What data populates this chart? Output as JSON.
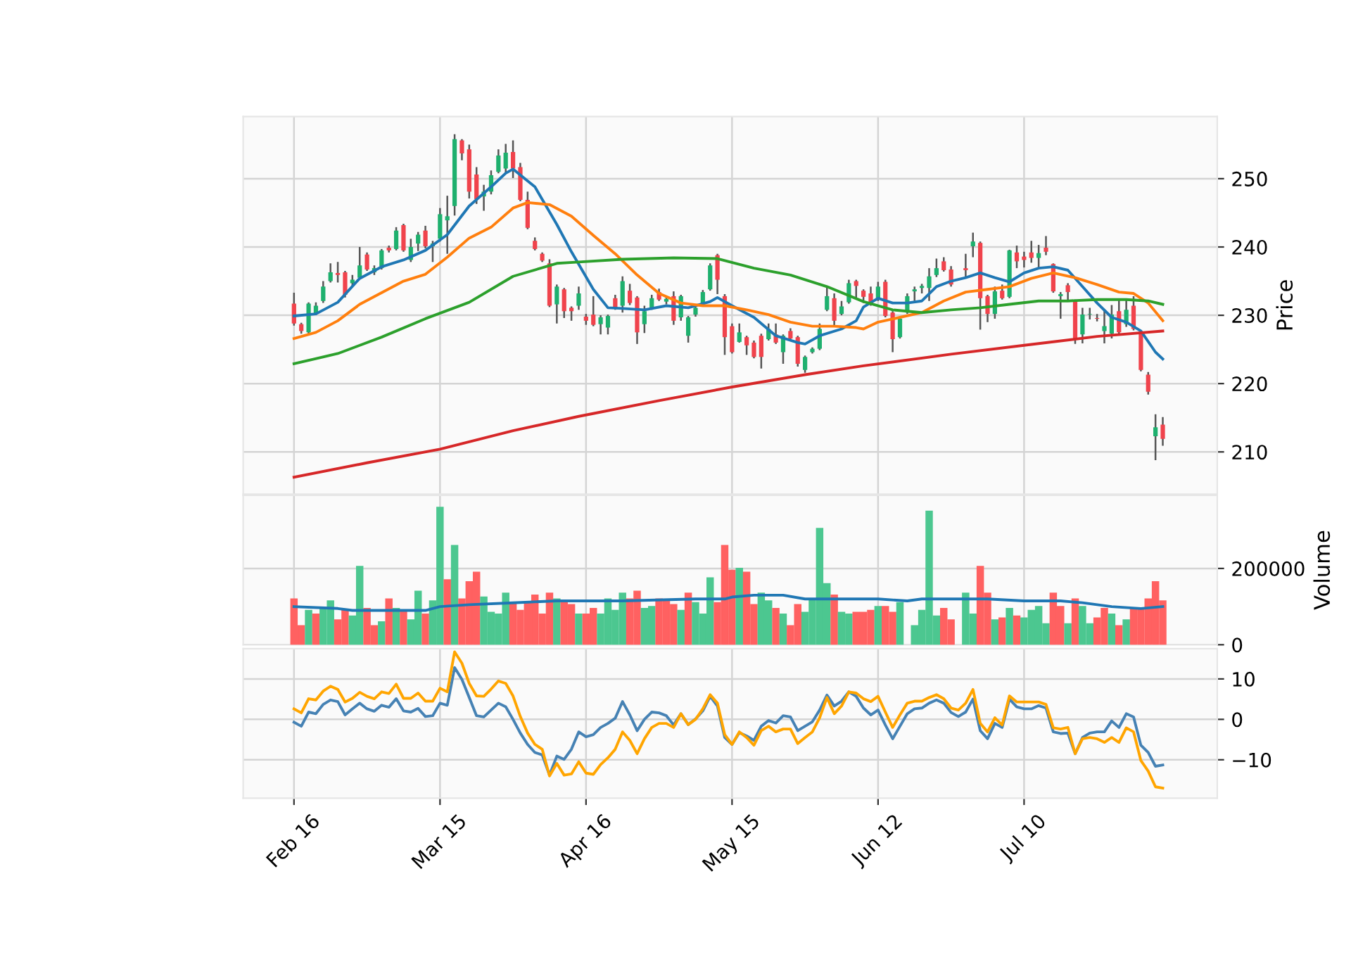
{
  "chart_data": [
    {
      "type": "candlestick",
      "ylabel": "Price",
      "tick_labels": "y",
      "grid": true,
      "categories": [
        null,
        null,
        null,
        null,
        null,
        null,
        null,
        null,
        null,
        null,
        null,
        null,
        null,
        null,
        null,
        null,
        null,
        null,
        null,
        null,
        null,
        null,
        null,
        null,
        null,
        null,
        null,
        null,
        null,
        null,
        null,
        null,
        null,
        null,
        null,
        null,
        null,
        null,
        null,
        null,
        null,
        null,
        null,
        null,
        null,
        null,
        null,
        null,
        null,
        null,
        null,
        null,
        null,
        null,
        null,
        null,
        null,
        null,
        null,
        null,
        null,
        null,
        null,
        null,
        null,
        null,
        null,
        null,
        null,
        null,
        null,
        null,
        null,
        null,
        null,
        null,
        null,
        null,
        null,
        null,
        null,
        null,
        null,
        null,
        null,
        null,
        null,
        null,
        null,
        null,
        null,
        null,
        null,
        null,
        null,
        null,
        null,
        null,
        null,
        null,
        null,
        null,
        null,
        null,
        null,
        null,
        null,
        null,
        null,
        null,
        null,
        null,
        null,
        null,
        null,
        null,
        null,
        null,
        null,
        null
      ],
      "ohlc": [
        [
          231.7,
          233.3,
          228.5,
          228.8
        ],
        [
          228.7,
          228.9,
          227.3,
          227.7
        ],
        [
          227.5,
          231.9,
          227.3,
          231.7
        ],
        [
          230.3,
          231.9,
          230.0,
          231.4
        ],
        [
          232.1,
          235.0,
          231.8,
          234.2
        ],
        [
          235.0,
          237.6,
          234.8,
          236.3
        ],
        [
          236.2,
          237.8,
          234.8,
          235.9
        ],
        [
          236.3,
          236.5,
          232.6,
          233.0
        ],
        [
          234.7,
          235.9,
          234.3,
          235.2
        ],
        [
          235.5,
          240.0,
          235.3,
          237.3
        ],
        [
          238.9,
          239.2,
          236.5,
          236.7
        ],
        [
          236.3,
          237.3,
          235.9,
          236.9
        ],
        [
          236.9,
          239.7,
          236.7,
          239.5
        ],
        [
          239.9,
          240.2,
          239.2,
          239.5
        ],
        [
          239.7,
          242.9,
          239.5,
          242.4
        ],
        [
          243.2,
          243.4,
          239.3,
          239.5
        ],
        [
          238.1,
          241.2,
          237.8,
          240.0
        ],
        [
          240.5,
          242.2,
          239.4,
          241.8
        ],
        [
          242.4,
          243.1,
          239.8,
          240.1
        ],
        [
          240.1,
          240.9,
          237.8,
          240.5
        ],
        [
          241.2,
          245.7,
          240.8,
          244.8
        ],
        [
          243.9,
          247.5,
          239.0,
          244.5
        ],
        [
          246.0,
          256.5,
          244.6,
          255.8
        ],
        [
          255.6,
          255.8,
          252.7,
          253.7
        ],
        [
          254.3,
          255.0,
          247.1,
          248.1
        ],
        [
          250.6,
          251.7,
          246.3,
          247.0
        ],
        [
          247.4,
          249.1,
          245.3,
          248.1
        ],
        [
          248.1,
          251.2,
          247.7,
          250.5
        ],
        [
          251.0,
          254.3,
          250.8,
          253.4
        ],
        [
          251.5,
          255.1,
          250.8,
          253.8
        ],
        [
          253.9,
          255.6,
          250.1,
          251.5
        ],
        [
          251.7,
          252.3,
          246.7,
          246.9
        ],
        [
          246.9,
          248.1,
          242.6,
          242.8
        ],
        [
          240.9,
          241.4,
          239.5,
          239.7
        ],
        [
          239.0,
          239.2,
          237.8,
          238.0
        ],
        [
          237.6,
          238.2,
          231.2,
          231.4
        ],
        [
          231.6,
          234.5,
          228.8,
          234.2
        ],
        [
          233.8,
          234.0,
          229.6,
          230.6
        ],
        [
          231.1,
          231.3,
          229.2,
          230.6
        ],
        [
          231.4,
          234.2,
          230.8,
          233.2
        ],
        [
          229.8,
          230.2,
          228.6,
          229.2
        ],
        [
          230.1,
          232.8,
          228.4,
          228.6
        ],
        [
          228.7,
          230.0,
          227.2,
          229.7
        ],
        [
          228.2,
          230.1,
          227.2,
          229.9
        ],
        [
          232.5,
          233.0,
          230.8,
          231.1
        ],
        [
          231.4,
          235.7,
          230.4,
          235.0
        ],
        [
          233.6,
          234.6,
          231.5,
          231.8
        ],
        [
          232.6,
          232.8,
          225.8,
          227.5
        ],
        [
          228.7,
          231.4,
          227.4,
          230.6
        ],
        [
          231.1,
          233.0,
          230.8,
          232.5
        ],
        [
          233.4,
          233.9,
          232.1,
          232.3
        ],
        [
          232.0,
          232.8,
          231.6,
          232.4
        ],
        [
          232.8,
          233.5,
          228.6,
          229.2
        ],
        [
          229.7,
          233.0,
          229.2,
          232.8
        ],
        [
          227.0,
          229.9,
          226.0,
          229.7
        ],
        [
          230.1,
          231.6,
          229.8,
          231.1
        ],
        [
          231.6,
          233.7,
          231.4,
          233.4
        ],
        [
          233.8,
          237.6,
          233.6,
          237.3
        ],
        [
          238.8,
          239.0,
          233.1,
          235.2
        ],
        [
          232.8,
          233.1,
          224.2,
          226.8
        ],
        [
          228.4,
          228.8,
          224.4,
          224.6
        ],
        [
          226.1,
          228.8,
          226.0,
          227.5
        ],
        [
          226.8,
          227.0,
          224.2,
          225.6
        ],
        [
          226.0,
          226.3,
          223.7,
          223.9
        ],
        [
          227.0,
          227.3,
          222.2,
          223.9
        ],
        [
          226.5,
          228.8,
          226.3,
          228.0
        ],
        [
          227.2,
          228.8,
          225.8,
          226.0
        ],
        [
          224.6,
          227.2,
          222.9,
          227.0
        ],
        [
          227.7,
          228.1,
          226.4,
          226.6
        ],
        [
          226.8,
          227.0,
          222.5,
          222.9
        ],
        [
          222.0,
          224.1,
          221.6,
          223.9
        ],
        [
          224.6,
          225.3,
          224.4,
          225.1
        ],
        [
          225.1,
          228.8,
          224.9,
          228.0
        ],
        [
          230.8,
          234.2,
          230.6,
          232.8
        ],
        [
          232.5,
          233.2,
          228.4,
          229.2
        ],
        [
          230.2,
          232.1,
          230.0,
          231.3
        ],
        [
          231.9,
          235.2,
          231.7,
          234.7
        ],
        [
          235.0,
          235.2,
          232.5,
          234.3
        ],
        [
          233.6,
          233.8,
          231.8,
          232.7
        ],
        [
          233.2,
          234.2,
          231.4,
          231.6
        ],
        [
          232.5,
          234.9,
          232.1,
          234.2
        ],
        [
          234.9,
          235.2,
          229.7,
          229.9
        ],
        [
          230.4,
          230.6,
          224.6,
          226.5
        ],
        [
          226.8,
          229.8,
          226.6,
          229.5
        ],
        [
          230.4,
          233.2,
          230.2,
          232.8
        ],
        [
          233.5,
          234.2,
          232.1,
          233.8
        ],
        [
          234.0,
          234.6,
          233.2,
          234.3
        ],
        [
          234.0,
          236.9,
          232.1,
          235.7
        ],
        [
          235.9,
          238.3,
          235.6,
          236.9
        ],
        [
          237.9,
          238.5,
          236.4,
          236.6
        ],
        [
          236.7,
          237.2,
          234.2,
          234.5
        ],
        null,
        [
          236.9,
          239.0,
          235.6,
          236.6
        ],
        [
          240.1,
          242.1,
          238.5,
          240.8
        ],
        [
          240.6,
          240.8,
          227.9,
          232.5
        ],
        [
          232.8,
          233.0,
          229.0,
          230.2
        ],
        [
          230.2,
          234.2,
          229.5,
          233.5
        ],
        [
          233.6,
          234.5,
          232.3,
          232.5
        ],
        [
          232.7,
          239.6,
          232.5,
          239.5
        ],
        [
          239.2,
          240.2,
          236.9,
          237.9
        ],
        [
          238.6,
          239.3,
          237.0,
          238.1
        ],
        [
          239.2,
          240.9,
          237.7,
          238.4
        ],
        [
          238.4,
          240.3,
          236.8,
          239.1
        ],
        [
          239.9,
          241.6,
          238.8,
          239.3
        ],
        [
          237.5,
          237.6,
          233.3,
          233.5
        ],
        [
          232.8,
          233.4,
          229.5,
          233.1
        ],
        [
          234.4,
          234.7,
          232.1,
          233.4
        ],
        [
          232.1,
          232.3,
          225.8,
          226.6
        ],
        [
          227.2,
          231.1,
          225.9,
          230.1
        ],
        [
          230.1,
          231.1,
          229.4,
          230.2
        ],
        [
          229.6,
          230.2,
          229.1,
          229.5
        ],
        [
          227.7,
          230.7,
          225.9,
          228.4
        ],
        [
          227.3,
          231.5,
          226.6,
          230.1
        ],
        [
          230.6,
          232.3,
          227.3,
          227.5
        ],
        [
          228.7,
          232.3,
          228.3,
          230.8
        ],
        [
          231.4,
          232.8,
          227.8,
          228.0
        ],
        [
          227.5,
          227.7,
          221.8,
          222.0
        ],
        [
          221.3,
          221.7,
          218.4,
          218.8
        ],
        [
          212.3,
          215.5,
          208.8,
          213.6
        ],
        [
          214.0,
          215.1,
          210.9,
          211.9
        ]
      ],
      "colors": [
        "#f0434c",
        "#f0434c",
        "#1eb06e",
        "#1eb06e",
        "#1eb06e",
        "#1eb06e",
        "#f0434c",
        "#f0434c",
        "#1eb06e",
        "#1eb06e",
        "#f0434c",
        "#1eb06e",
        "#1eb06e",
        "#f0434c",
        "#1eb06e",
        "#f0434c",
        "#1eb06e",
        "#1eb06e",
        "#f0434c",
        "#1eb06e",
        "#1eb06e",
        "#1eb06e",
        "#1eb06e",
        "#f0434c",
        "#f0434c",
        "#f0434c",
        "#1eb06e",
        "#1eb06e",
        "#1eb06e",
        "#1eb06e",
        "#f0434c",
        "#f0434c",
        "#f0434c",
        "#f0434c",
        "#f0434c",
        "#f0434c",
        "#1eb06e",
        "#f0434c",
        "#f0434c",
        "#1eb06e",
        "#f0434c",
        "#f0434c",
        "#1eb06e",
        "#1eb06e",
        "#f0434c",
        "#1eb06e",
        "#f0434c",
        "#f0434c",
        "#1eb06e",
        "#1eb06e",
        "#f0434c",
        "#1eb06e",
        "#f0434c",
        "#1eb06e",
        "#1eb06e",
        "#1eb06e",
        "#1eb06e",
        "#1eb06e",
        "#f0434c",
        "#f0434c",
        "#f0434c",
        "#1eb06e",
        "#f0434c",
        "#f0434c",
        "#f0434c",
        "#1eb06e",
        "#f0434c",
        "#1eb06e",
        "#f0434c",
        "#f0434c",
        "#1eb06e",
        "#1eb06e",
        "#1eb06e",
        "#1eb06e",
        "#f0434c",
        "#1eb06e",
        "#1eb06e",
        "#f0434c",
        "#f0434c",
        "#f0434c",
        "#1eb06e",
        "#f0434c",
        "#f0434c",
        "#1eb06e",
        "#1eb06e",
        "#1eb06e",
        "#1eb06e",
        "#1eb06e",
        "#1eb06e",
        "#f0434c",
        "#f0434c",
        null,
        "#f0434c",
        "#1eb06e",
        "#f0434c",
        "#f0434c",
        "#1eb06e",
        "#f0434c",
        "#1eb06e",
        "#f0434c",
        "#f0434c",
        "#f0434c",
        "#1eb06e",
        "#f0434c",
        "#f0434c",
        "#1eb06e",
        "#f0434c",
        "#f0434c",
        "#1eb06e",
        "#1eb06e",
        "#f0434c",
        "#1eb06e",
        "#1eb06e",
        "#f0434c",
        "#1eb06e",
        "#f0434c",
        "#f0434c",
        "#f0434c",
        "#1eb06e",
        "#f0434c"
      ],
      "series": [
        {
          "type": "line",
          "color": "#1f77b4",
          "values": [
            229.9,
            null,
            null,
            230.2,
            null,
            null,
            231.9,
            null,
            null,
            235.4,
            null,
            null,
            237.1,
            null,
            null,
            238.1,
            null,
            null,
            239.5,
            null,
            null,
            241.8,
            null,
            null,
            246.0,
            null,
            null,
            248.8,
            null,
            250.8,
            251.4,
            null,
            null,
            248.8,
            null,
            null,
            243.3,
            null,
            239.3,
            null,
            null,
            233.8,
            null,
            231.1,
            null,
            231.0,
            null,
            null,
            230.8,
            null,
            null,
            231.4,
            null,
            null,
            231.1,
            null,
            null,
            232.0,
            232.6,
            null,
            231.4,
            null,
            null,
            229.7,
            null,
            null,
            227.0,
            null,
            null,
            226.0,
            225.8,
            null,
            227.0,
            null,
            null,
            228.0,
            null,
            229.2,
            231.2,
            null,
            232.5,
            null,
            231.8,
            null,
            231.8,
            null,
            232.1,
            null,
            234.2,
            null,
            235.0,
            null,
            235.5,
            null,
            236.2,
            null,
            235.5,
            null,
            234.9,
            null,
            236.2,
            null,
            236.9,
            null,
            237.1,
            null,
            236.6,
            null,
            234.2,
            null,
            231.8,
            null,
            229.7,
            null,
            229.0,
            null,
            227.7,
            null,
            224.6,
            223.6
          ]
        },
        {
          "type": "line",
          "color": "#ff7f0e",
          "values": [
            226.6,
            null,
            null,
            227.5,
            null,
            null,
            229.2,
            null,
            null,
            231.6,
            null,
            null,
            233.3,
            null,
            null,
            235.0,
            null,
            null,
            236.0,
            null,
            null,
            238.5,
            null,
            null,
            241.3,
            null,
            null,
            242.9,
            null,
            null,
            245.7,
            null,
            246.5,
            null,
            null,
            246.2,
            null,
            null,
            244.5,
            null,
            null,
            241.7,
            null,
            null,
            239.0,
            null,
            null,
            235.9,
            null,
            null,
            233.2,
            null,
            null,
            231.8,
            null,
            null,
            231.4,
            null,
            null,
            231.4,
            null,
            null,
            230.8,
            null,
            null,
            230.1,
            null,
            null,
            229.0,
            null,
            null,
            228.4,
            null,
            null,
            228.4,
            null,
            null,
            228.2,
            228.0,
            null,
            229.0,
            null,
            null,
            229.7,
            null,
            null,
            230.4,
            null,
            null,
            232.1,
            null,
            null,
            233.4,
            null,
            null,
            233.8,
            null,
            null,
            234.2,
            null,
            null,
            235.4,
            null,
            null,
            236.2,
            null,
            null,
            235.5,
            null,
            null,
            234.5,
            null,
            null,
            233.4,
            null,
            233.2,
            null,
            231.8,
            null,
            229.2
          ]
        },
        {
          "type": "line",
          "color": "#2ca02c",
          "values": [
            222.9,
            null,
            null,
            null,
            null,
            null,
            224.4,
            null,
            null,
            null,
            null,
            null,
            226.8,
            null,
            null,
            null,
            null,
            null,
            229.5,
            null,
            null,
            null,
            null,
            null,
            231.9,
            null,
            null,
            null,
            null,
            null,
            235.7,
            null,
            null,
            null,
            null,
            null,
            237.6,
            null,
            null,
            237.8,
            null,
            null,
            null,
            null,
            null,
            238.2,
            null,
            null,
            null,
            null,
            null,
            null,
            238.4,
            null,
            null,
            null,
            null,
            null,
            238.3,
            null,
            null,
            null,
            null,
            236.9,
            null,
            null,
            null,
            null,
            235.9,
            null,
            null,
            null,
            null,
            234.2,
            null,
            null,
            null,
            null,
            232.0,
            null,
            null,
            null,
            230.8,
            null,
            null,
            null,
            230.4,
            null,
            null,
            null,
            230.8,
            null,
            null,
            null,
            231.1,
            null,
            null,
            null,
            231.6,
            null,
            null,
            null,
            232.1,
            null,
            null,
            null,
            232.1,
            null,
            null,
            null,
            232.3,
            null,
            null,
            null,
            232.3,
            null,
            null,
            232.1,
            null,
            231.6
          ]
        },
        {
          "type": "line",
          "color": "#d62728",
          "values": [
            206.3,
            null,
            null,
            null,
            null,
            null,
            null,
            null,
            null,
            null,
            208.4,
            null,
            null,
            null,
            null,
            null,
            null,
            null,
            null,
            null,
            210.4,
            null,
            null,
            null,
            null,
            null,
            null,
            null,
            null,
            null,
            213.1,
            null,
            null,
            null,
            null,
            null,
            null,
            null,
            null,
            215.2,
            null,
            null,
            null,
            null,
            null,
            null,
            null,
            null,
            null,
            null,
            217.5,
            null,
            null,
            null,
            null,
            null,
            null,
            null,
            null,
            null,
            219.5,
            null,
            null,
            null,
            null,
            null,
            null,
            null,
            null,
            null,
            221.3,
            null,
            null,
            null,
            null,
            null,
            null,
            null,
            222.6,
            null,
            null,
            null,
            null,
            null,
            null,
            null,
            null,
            null,
            null,
            null,
            224.3,
            null,
            null,
            null,
            null,
            null,
            null,
            null,
            null,
            null,
            225.6,
            null,
            null,
            null,
            null,
            null,
            null,
            null,
            null,
            null,
            226.9,
            null,
            null,
            null,
            null,
            null,
            null,
            null,
            null,
            227.7
          ]
        }
      ],
      "ylim": [
        203.8,
        259.1
      ],
      "yticks": [
        210,
        220,
        230,
        240,
        250
      ]
    },
    {
      "type": "bar",
      "ylabel": "Volume",
      "tick_labels": "y",
      "grid": true,
      "categories": [
        null,
        null,
        null,
        null,
        null,
        null,
        null,
        null,
        null,
        null,
        null,
        null,
        null,
        null,
        null,
        null,
        null,
        null,
        null,
        null,
        null,
        null,
        null,
        null,
        null,
        null,
        null,
        null,
        null,
        null,
        null,
        null,
        null,
        null,
        null,
        null,
        null,
        null,
        null,
        null,
        null,
        null,
        null,
        null,
        null,
        null,
        null,
        null,
        null,
        null,
        null,
        null,
        null,
        null,
        null,
        null,
        null,
        null,
        null,
        null,
        null,
        null,
        null,
        null,
        null,
        null,
        null,
        null,
        null,
        null,
        null,
        null,
        null,
        null,
        null,
        null,
        null,
        null,
        null,
        null,
        null,
        null,
        null,
        null,
        null,
        null,
        null,
        null,
        null,
        null,
        null,
        null,
        null,
        null,
        null,
        null,
        null,
        null,
        null,
        null,
        null,
        null,
        null,
        null,
        null,
        null,
        null,
        null,
        null,
        null,
        null,
        null,
        null,
        null,
        null,
        null,
        null,
        null,
        null,
        null
      ],
      "values": [
        120000,
        50000,
        90000,
        80000,
        95000,
        115000,
        65000,
        90000,
        75000,
        205000,
        95000,
        50000,
        60000,
        120000,
        95000,
        90000,
        65000,
        140000,
        80000,
        115000,
        360000,
        170000,
        260000,
        120000,
        165000,
        190000,
        125000,
        85000,
        80000,
        135000,
        110000,
        90000,
        110000,
        130000,
        80000,
        135000,
        120000,
        115000,
        105000,
        80000,
        80000,
        95000,
        80000,
        120000,
        90000,
        135000,
        120000,
        140000,
        95000,
        100000,
        120000,
        115000,
        105000,
        90000,
        135000,
        110000,
        80000,
        175000,
        110000,
        260000,
        195000,
        200000,
        190000,
        105000,
        135000,
        115000,
        95000,
        80000,
        50000,
        105000,
        85000,
        120000,
        305000,
        160000,
        130000,
        85000,
        80000,
        85000,
        85000,
        90000,
        100000,
        100000,
        85000,
        110000,
        null,
        50000,
        90000,
        350000,
        75000,
        95000,
        65000,
        null,
        135000,
        80000,
        205000,
        135000,
        65000,
        70000,
        95000,
        75000,
        70000,
        90000,
        100000,
        55000,
        135000,
        100000,
        55000,
        120000,
        100000,
        55000,
        70000,
        95000,
        80000,
        50000,
        65000,
        95000,
        95000,
        120000,
        165000,
        115000
      ],
      "colors": [
        "#ff6161",
        "#ff6161",
        "#4cc790",
        "#ff6161",
        "#4cc790",
        "#4cc790",
        "#ff6161",
        "#ff6161",
        "#4cc790",
        "#4cc790",
        "#ff6161",
        "#ff6161",
        "#4cc790",
        "#ff6161",
        "#4cc790",
        "#ff6161",
        "#4cc790",
        "#4cc790",
        "#ff6161",
        "#4cc790",
        "#4cc790",
        "#ff6161",
        "#4cc790",
        "#ff6161",
        "#ff6161",
        "#ff6161",
        "#4cc790",
        "#4cc790",
        "#4cc790",
        "#4cc790",
        "#ff6161",
        "#ff6161",
        "#ff6161",
        "#ff6161",
        "#ff6161",
        "#ff6161",
        "#4cc790",
        "#ff6161",
        "#ff6161",
        "#4cc790",
        "#ff6161",
        "#ff6161",
        "#4cc790",
        "#4cc790",
        "#4cc790",
        "#4cc790",
        "#ff6161",
        "#ff6161",
        "#4cc790",
        "#4cc790",
        "#ff6161",
        "#ff6161",
        "#ff6161",
        "#4cc790",
        "#ff6161",
        "#4cc790",
        "#4cc790",
        "#4cc790",
        "#ff6161",
        "#ff6161",
        "#ff6161",
        "#4cc790",
        "#ff6161",
        "#ff6161",
        "#4cc790",
        "#4cc790",
        "#ff6161",
        "#4cc790",
        "#ff6161",
        "#ff6161",
        "#4cc790",
        "#4cc790",
        "#4cc790",
        "#4cc790",
        "#ff6161",
        "#4cc790",
        "#4cc790",
        "#ff6161",
        "#ff6161",
        "#ff6161",
        "#4cc790",
        "#ff6161",
        "#ff6161",
        "#4cc790",
        null,
        "#4cc790",
        "#4cc790",
        "#4cc790",
        "#4cc790",
        "#ff6161",
        "#ff6161",
        null,
        "#4cc790",
        "#4cc790",
        "#ff6161",
        "#ff6161",
        "#4cc790",
        "#ff6161",
        "#4cc790",
        "#ff6161",
        "#4cc790",
        "#4cc790",
        "#4cc790",
        "#4cc790",
        "#ff6161",
        "#ff6161",
        "#4cc790",
        "#ff6161",
        "#4cc790",
        "#4cc790",
        "#ff6161",
        "#ff6161",
        "#4cc790",
        "#ff6161",
        "#4cc790",
        "#ff6161",
        "#ff6161",
        "#ff6161",
        "#ff6161",
        "#ff6161"
      ],
      "series": [
        {
          "type": "line",
          "color": "#1f77b4",
          "values": [
            100000,
            null,
            null,
            null,
            null,
            null,
            95000,
            null,
            90000,
            null,
            null,
            null,
            90000,
            null,
            null,
            null,
            null,
            null,
            90000,
            null,
            100000,
            null,
            null,
            null,
            105000,
            null,
            null,
            null,
            null,
            null,
            110000,
            null,
            null,
            null,
            null,
            null,
            115000,
            null,
            null,
            null,
            null,
            null,
            null,
            null,
            null,
            115000,
            null,
            null,
            null,
            null,
            null,
            null,
            null,
            null,
            null,
            120000,
            null,
            null,
            null,
            120000,
            125000,
            null,
            null,
            130000,
            null,
            null,
            null,
            130000,
            null,
            null,
            120000,
            null,
            null,
            null,
            null,
            120000,
            null,
            null,
            null,
            null,
            120000,
            null,
            null,
            null,
            115000,
            null,
            120000,
            null,
            null,
            null,
            120000,
            null,
            null,
            null,
            null,
            120000,
            null,
            null,
            null,
            null,
            115000,
            null,
            null,
            null,
            null,
            115000,
            null,
            null,
            110000,
            null,
            null,
            null,
            100000,
            null,
            null,
            null,
            95000,
            null,
            null,
            100000
          ]
        }
      ],
      "ylim": [
        0,
        392000
      ],
      "yticks": [
        0,
        200000
      ]
    },
    {
      "type": "line",
      "grid": true,
      "categories": [
        "Feb 16",
        null,
        null,
        null,
        null,
        null,
        null,
        null,
        null,
        null,
        null,
        null,
        null,
        null,
        null,
        null,
        null,
        null,
        null,
        null,
        "Mar 15",
        null,
        null,
        null,
        null,
        null,
        null,
        null,
        null,
        null,
        null,
        null,
        null,
        null,
        null,
        null,
        null,
        null,
        null,
        null,
        "Apr 16",
        null,
        null,
        null,
        null,
        null,
        null,
        null,
        null,
        null,
        null,
        null,
        null,
        null,
        null,
        null,
        null,
        null,
        null,
        null,
        "May 15",
        null,
        null,
        null,
        null,
        null,
        null,
        null,
        null,
        null,
        null,
        null,
        null,
        null,
        null,
        null,
        null,
        null,
        null,
        null,
        "Jun 12",
        null,
        null,
        null,
        null,
        null,
        null,
        null,
        null,
        null,
        null,
        null,
        null,
        null,
        null,
        null,
        null,
        null,
        null,
        null,
        "Jul 10",
        null,
        null,
        null,
        null,
        null,
        null,
        null,
        null,
        null,
        null,
        null,
        null,
        null,
        null,
        null,
        null,
        null,
        null,
        null
      ],
      "series": [
        {
          "color": "#4682b4",
          "values": [
            -0.7,
            -1.7,
            1.8,
            1.4,
            3.7,
            4.8,
            4.4,
            1.1,
            2.6,
            4.0,
            2.6,
            2.0,
            3.5,
            3.0,
            5.1,
            2.1,
            1.8,
            2.7,
            0.7,
            0.9,
            4.0,
            3.5,
            12.8,
            9.9,
            5.4,
            0.9,
            0.6,
            2.3,
            4.0,
            3.1,
            0.0,
            -3.4,
            -6.2,
            -8.2,
            -8.8,
            -13.8,
            -9.1,
            -9.9,
            -7.4,
            -3.1,
            -4.3,
            -3.8,
            -2.0,
            -1.0,
            0.3,
            4.4,
            1.1,
            -2.8,
            0.0,
            1.8,
            1.6,
            0.9,
            -1.4,
            1.4,
            -1.3,
            0.1,
            2.1,
            5.7,
            3.3,
            -4.5,
            -6.2,
            -3.3,
            -4.1,
            -5.2,
            -1.7,
            -0.3,
            -0.9,
            0.9,
            0.6,
            -2.8,
            -1.7,
            -0.6,
            2.3,
            6.0,
            3.3,
            4.5,
            6.8,
            5.7,
            2.8,
            1.1,
            2.3,
            -1.4,
            -4.8,
            -1.7,
            1.4,
            2.6,
            2.8,
            4.0,
            4.8,
            4.0,
            1.7,
            0.7,
            1.8,
            5.0,
            -2.8,
            -4.8,
            -1.0,
            -2.0,
            5.0,
            3.1,
            2.6,
            2.6,
            3.4,
            2.8,
            -3.1,
            -3.5,
            -3.4,
            -8.5,
            -4.5,
            -3.4,
            -3.1,
            -3.1,
            -0.4,
            -2.0,
            1.4,
            0.6,
            -6.4,
            -8.2,
            -11.6,
            -11.3
          ]
        },
        {
          "color": "#ffa500",
          "values": [
            2.6,
            1.6,
            5.1,
            4.8,
            7.0,
            8.2,
            7.4,
            4.3,
            5.2,
            6.7,
            5.7,
            5.1,
            6.8,
            6.4,
            8.7,
            5.2,
            5.2,
            6.5,
            4.5,
            4.5,
            7.7,
            6.8,
            16.7,
            13.9,
            8.9,
            5.8,
            5.7,
            7.5,
            9.5,
            8.9,
            5.8,
            0.7,
            -3.4,
            -6.2,
            -7.4,
            -14.0,
            -10.9,
            -13.8,
            -13.5,
            -10.5,
            -13.3,
            -13.6,
            -11.2,
            -9.5,
            -7.4,
            -3.1,
            -5.2,
            -8.5,
            -4.8,
            -2.0,
            -1.0,
            -1.0,
            -2.0,
            1.4,
            -1.3,
            0.0,
            2.6,
            6.1,
            4.0,
            -3.8,
            -6.2,
            -3.1,
            -4.5,
            -6.4,
            -2.8,
            -1.7,
            -3.1,
            -2.4,
            -2.4,
            -6.0,
            -4.5,
            -3.1,
            0.4,
            5.4,
            1.4,
            3.3,
            6.8,
            6.5,
            5.1,
            4.4,
            5.7,
            1.8,
            -2.0,
            1.1,
            4.0,
            4.5,
            4.5,
            5.4,
            6.1,
            5.1,
            2.8,
            2.3,
            4.0,
            7.4,
            -1.0,
            -3.1,
            0.4,
            -1.4,
            5.8,
            4.3,
            4.3,
            4.3,
            4.3,
            3.7,
            -2.1,
            -2.4,
            -2.0,
            -8.5,
            -4.8,
            -4.5,
            -4.8,
            -5.7,
            -4.5,
            -5.7,
            -2.1,
            -3.1,
            -10.2,
            -12.8,
            -16.7,
            -17.0
          ]
        }
      ],
      "ylim": [
        -19.5,
        17.5
      ],
      "yticks": [
        {
          "value": -10,
          "label": "−10"
        },
        0,
        10
      ]
    }
  ]
}
